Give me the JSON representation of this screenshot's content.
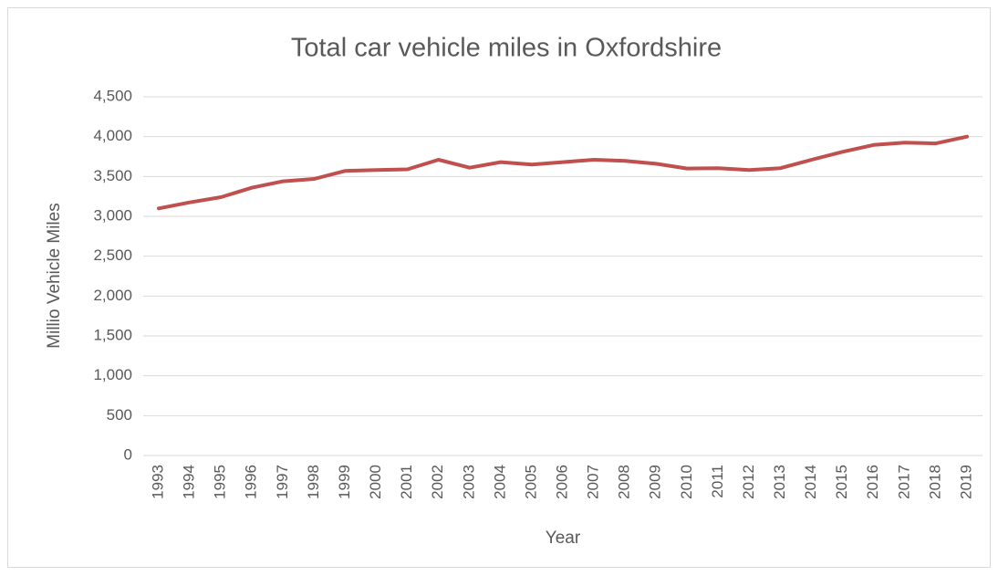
{
  "chart_data": {
    "type": "line",
    "title": "Total car vehicle miles in Oxfordshire",
    "xlabel": "Year",
    "ylabel": "Millio Vehicle Miles",
    "categories": [
      "1993",
      "1994",
      "1995",
      "1996",
      "1997",
      "1998",
      "1999",
      "2000",
      "2001",
      "2002",
      "2003",
      "2004",
      "2005",
      "2006",
      "2007",
      "2008",
      "2009",
      "2010",
      "2011",
      "2012",
      "2013",
      "2014",
      "2015",
      "2016",
      "2017",
      "2018",
      "2019"
    ],
    "values": [
      3100,
      3175,
      3240,
      3360,
      3440,
      3470,
      3570,
      3580,
      3590,
      3710,
      3610,
      3680,
      3650,
      3680,
      3710,
      3695,
      3660,
      3600,
      3605,
      3580,
      3605,
      3710,
      3810,
      3895,
      3925,
      3915,
      4000
    ],
    "color": "#c0504d",
    "ylim": [
      0,
      4500
    ],
    "yticks": [
      0,
      500,
      {
        "value": 1000,
        "label": "1,000"
      },
      {
        "value": 1500,
        "label": "1,500"
      },
      {
        "value": 2000,
        "label": "2,000"
      },
      {
        "value": 2500,
        "label": "2,500"
      },
      {
        "value": 3000,
        "label": "3,000"
      },
      {
        "value": 3500,
        "label": "3,500"
      },
      {
        "value": 4000,
        "label": "4,000"
      },
      {
        "value": 4500,
        "label": "4,500"
      }
    ],
    "grid": true
  }
}
